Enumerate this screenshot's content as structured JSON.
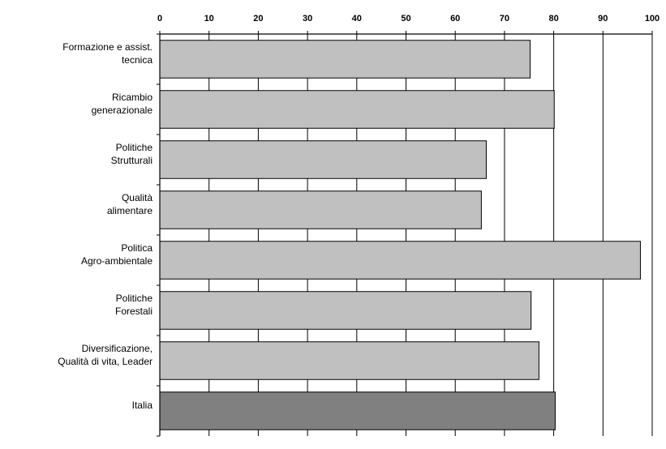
{
  "chart_data": {
    "type": "bar",
    "orientation": "horizontal",
    "x_axis_position": "top",
    "xlim": [
      0,
      100
    ],
    "x_ticks": [
      0,
      10,
      20,
      30,
      40,
      50,
      60,
      70,
      80,
      90,
      100
    ],
    "grid": "vertical major gridlines",
    "categories": [
      [
        "Formazione e assist.",
        "tecnica"
      ],
      [
        "Ricambio",
        "generazionale"
      ],
      [
        "Politiche",
        "Strutturali"
      ],
      [
        "Qualità",
        "alimentare"
      ],
      [
        "Politica",
        "Agro-ambientale"
      ],
      [
        "Politiche",
        "Forestali"
      ],
      [
        "Diversificazione,",
        "Qualità di vita, Leader"
      ],
      [
        "Italia"
      ]
    ],
    "values": [
      75.2,
      80.1,
      66.3,
      65.3,
      97.6,
      75.4,
      77.0,
      80.3
    ],
    "colors": [
      "#c0c0c0",
      "#c0c0c0",
      "#c0c0c0",
      "#c0c0c0",
      "#c0c0c0",
      "#c0c0c0",
      "#c0c0c0",
      "#808080"
    ],
    "title": "",
    "xlabel": "",
    "ylabel": ""
  }
}
